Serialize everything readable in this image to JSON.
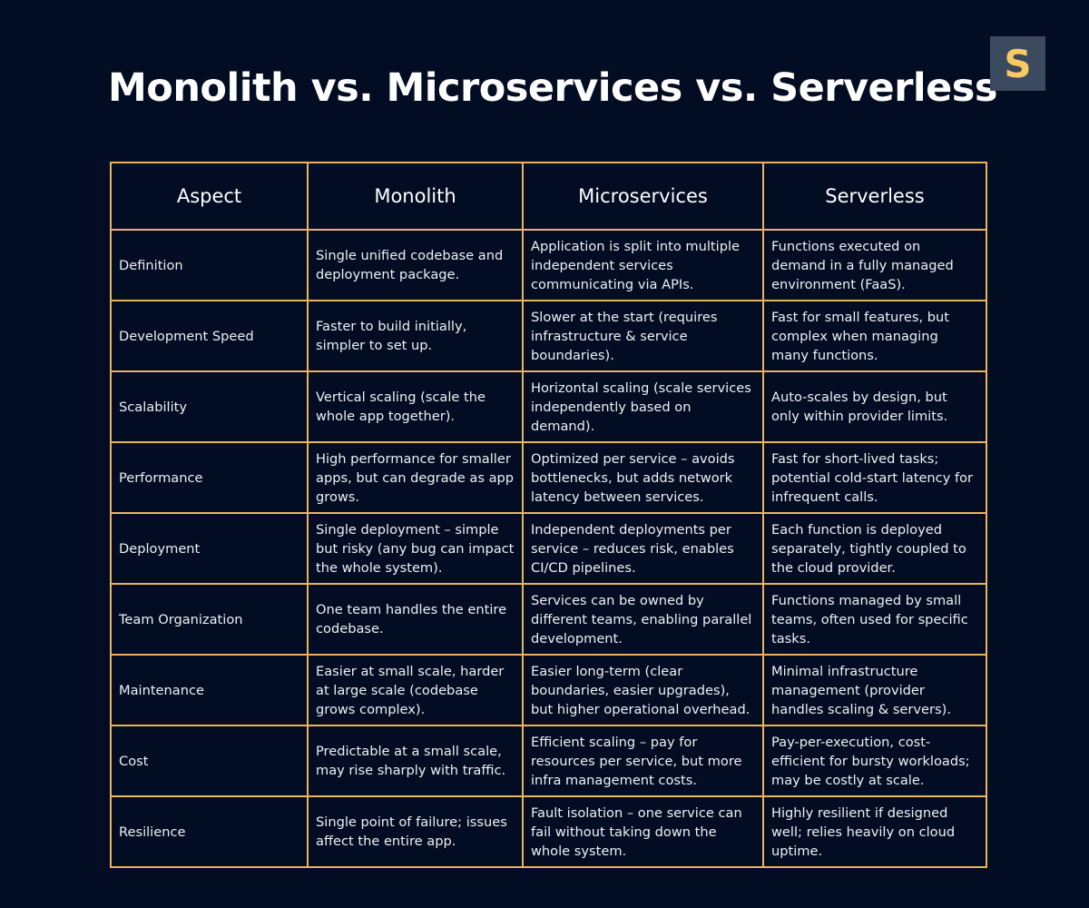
{
  "title": "Monolith vs. Microservices vs. Serverless",
  "logo": {
    "letter": "S",
    "bg_color": "#3b4a5e",
    "fg_color": "#f9ca64"
  },
  "colors": {
    "background": "#020c22",
    "border": "#e9b45c",
    "text": "#ffffff"
  },
  "table": {
    "headers": [
      "Aspect",
      "Monolith",
      "Microservices",
      "Serverless"
    ],
    "rows": [
      [
        "Definition",
        "Single unified codebase and deployment package.",
        "Application is split into multiple independent services communicating via APIs.",
        "Functions executed on demand in a fully managed environment (FaaS)."
      ],
      [
        "Development Speed",
        "Faster to build initially, simpler to set up.",
        "Slower at the start (requires infrastructure & service boundaries).",
        "Fast for small features, but complex when managing many functions."
      ],
      [
        "Scalability",
        "Vertical scaling (scale the whole app together).",
        "Horizontal scaling (scale services independently based on demand).",
        "Auto-scales by design, but only within provider limits."
      ],
      [
        "Performance",
        "High performance for smaller apps, but can degrade as app grows.",
        "Optimized per service – avoids bottlenecks, but adds network latency between services.",
        "Fast for short-lived tasks; potential cold-start latency for infrequent calls."
      ],
      [
        "Deployment",
        "Single deployment – simple but risky (any bug can impact the whole system).",
        "Independent deployments per service – reduces risk, enables CI/CD pipelines.",
        "Each function is deployed separately, tightly coupled to the cloud provider."
      ],
      [
        "Team Organization",
        "One team handles the entire codebase.",
        "Services can be owned by different teams, enabling parallel development.",
        "Functions managed by small teams, often used for specific tasks."
      ],
      [
        "Maintenance",
        "Easier at small scale, harder at large scale (codebase grows complex).",
        "Easier long-term (clear boundaries, easier upgrades), but higher operational overhead.",
        "Minimal infrastructure management (provider handles scaling & servers)."
      ],
      [
        "Cost",
        "Predictable at a small scale, may rise sharply with traffic.",
        "Efficient scaling – pay for resources per service, but more infra management costs.",
        "Pay-per-execution, cost-efficient for bursty workloads; may be costly at scale."
      ],
      [
        "Resilience",
        "Single point of failure; issues affect the entire app.",
        "Fault isolation – one service can fail without taking down the whole system.",
        "Highly resilient if designed well; relies heavily on cloud uptime."
      ]
    ]
  }
}
